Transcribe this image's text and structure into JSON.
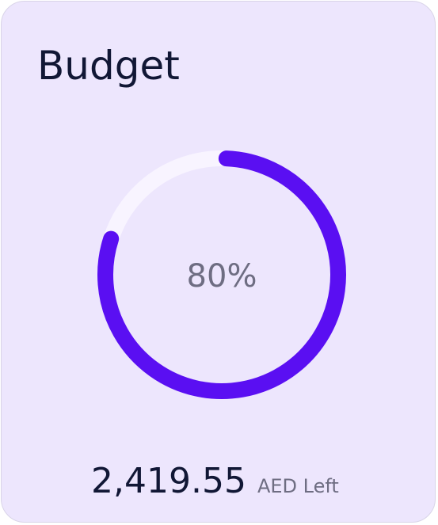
{
  "card": {
    "title": "Budget",
    "progress": {
      "value": 80,
      "label": "80%",
      "lim": [
        0,
        100
      ]
    },
    "amount": "2,419.55",
    "unit_label": "AED Left"
  }
}
